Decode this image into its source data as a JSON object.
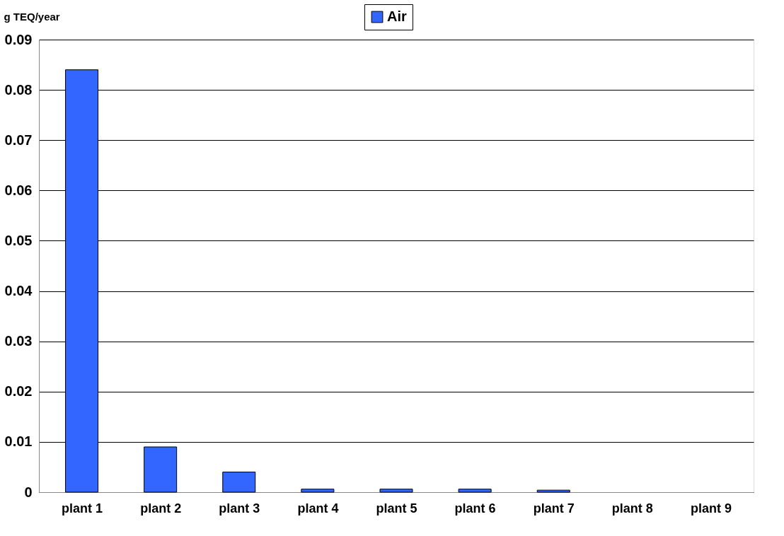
{
  "chart_data": {
    "type": "bar",
    "ylabel": "g TEQ/year",
    "categories": [
      "plant 1",
      "plant 2",
      "plant 3",
      "plant 4",
      "plant 5",
      "plant 6",
      "plant 7",
      "plant 8",
      "plant 9"
    ],
    "series": [
      {
        "name": "Air",
        "color": "#3366ff",
        "values": [
          0.084,
          0.009,
          0.004,
          0.0006,
          0.0006,
          0.0006,
          0.0004,
          null,
          null
        ]
      }
    ],
    "ylim": [
      0,
      0.09
    ],
    "yticks": [
      0,
      0.01,
      0.02,
      0.03,
      0.04,
      0.05,
      0.06,
      0.07,
      0.08,
      0.09
    ],
    "grid": "y",
    "legend": "top"
  }
}
